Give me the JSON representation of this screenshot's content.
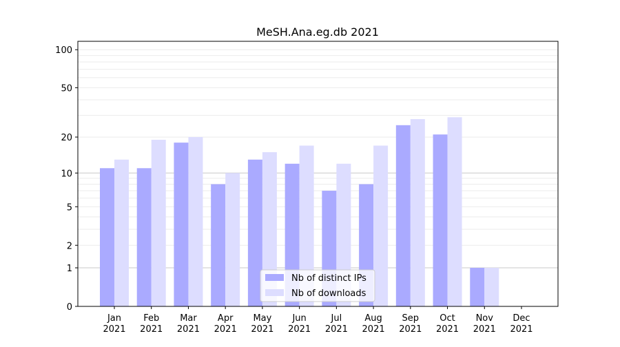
{
  "chart_data": {
    "type": "bar",
    "title": "MeSH.Ana.eg.db 2021",
    "xlabel": "",
    "ylabel": "",
    "yscale": "log(1+y)",
    "ylim": [
      0,
      110
    ],
    "yticks": [
      0,
      1,
      2,
      5,
      10,
      20,
      50,
      100
    ],
    "categories": [
      "Jan\n2021",
      "Feb\n2021",
      "Mar\n2021",
      "Apr\n2021",
      "May\n2021",
      "Jun\n2021",
      "Jul\n2021",
      "Aug\n2021",
      "Sep\n2021",
      "Oct\n2021",
      "Nov\n2021",
      "Dec\n2021"
    ],
    "series": [
      {
        "name": "Nb of distinct IPs",
        "color": "#aaaaff",
        "values": [
          11,
          11,
          18,
          8,
          13,
          12,
          7,
          8,
          25,
          21,
          1,
          0
        ]
      },
      {
        "name": "Nb of downloads",
        "color": "#ddddff",
        "values": [
          13,
          19,
          20,
          10,
          15,
          17,
          12,
          17,
          28,
          29,
          1,
          0
        ]
      }
    ],
    "legend": "lower-center",
    "grid": true
  }
}
